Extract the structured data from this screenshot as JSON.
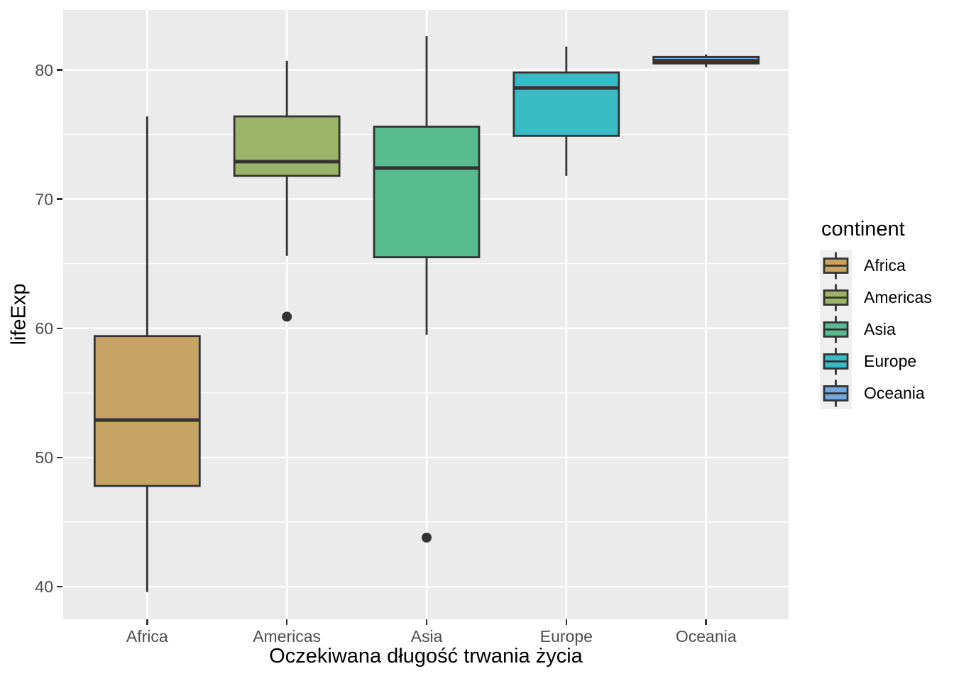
{
  "figure": {
    "background": "#FFFFFF",
    "panel_background": "#EBEBEB",
    "gridline_color": "#FFFFFF",
    "axis_text_color": "#4D4D4D",
    "box_outline_color": "#333333"
  },
  "legend": {
    "title": "continent",
    "items": [
      {
        "label": "Africa",
        "color": "#C7A364"
      },
      {
        "label": "Americas",
        "color": "#9BB469"
      },
      {
        "label": "Asia",
        "color": "#57BB8F"
      },
      {
        "label": "Europe",
        "color": "#3ABAC4"
      },
      {
        "label": "Oceania",
        "color": "#76A7DB"
      }
    ]
  },
  "chart_data": {
    "type": "boxplot",
    "title": "",
    "xlabel": "Oczekiwana długość trwania życia",
    "ylabel": "lifeExp",
    "ylim": [
      37.5,
      84.6
    ],
    "y_major_ticks": [
      40,
      50,
      60,
      70,
      80
    ],
    "y_minor_ticks": [
      45,
      55,
      65,
      75
    ],
    "grid": "white-on-gray",
    "legend_position": "right",
    "categories": [
      "Africa",
      "Americas",
      "Asia",
      "Europe",
      "Oceania"
    ],
    "series": [
      {
        "name": "Africa",
        "color": "#C7A364",
        "whisker_low": 39.6,
        "q1": 47.8,
        "median": 52.9,
        "q3": 59.4,
        "whisker_high": 76.4,
        "outliers": []
      },
      {
        "name": "Americas",
        "color": "#9BB469",
        "whisker_low": 65.6,
        "q1": 71.8,
        "median": 72.9,
        "q3": 76.4,
        "whisker_high": 80.7,
        "outliers": [
          60.9
        ]
      },
      {
        "name": "Asia",
        "color": "#57BB8F",
        "whisker_low": 59.5,
        "q1": 65.5,
        "median": 72.4,
        "q3": 75.6,
        "whisker_high": 82.6,
        "outliers": [
          43.8
        ]
      },
      {
        "name": "Europe",
        "color": "#3ABAC4",
        "whisker_low": 71.8,
        "q1": 74.9,
        "median": 78.6,
        "q3": 79.8,
        "whisker_high": 81.8,
        "outliers": []
      },
      {
        "name": "Oceania",
        "color": "#76A7DB",
        "whisker_low": 80.2,
        "q1": 80.5,
        "median": 80.7,
        "q3": 81.0,
        "whisker_high": 81.2,
        "outliers": []
      }
    ]
  }
}
